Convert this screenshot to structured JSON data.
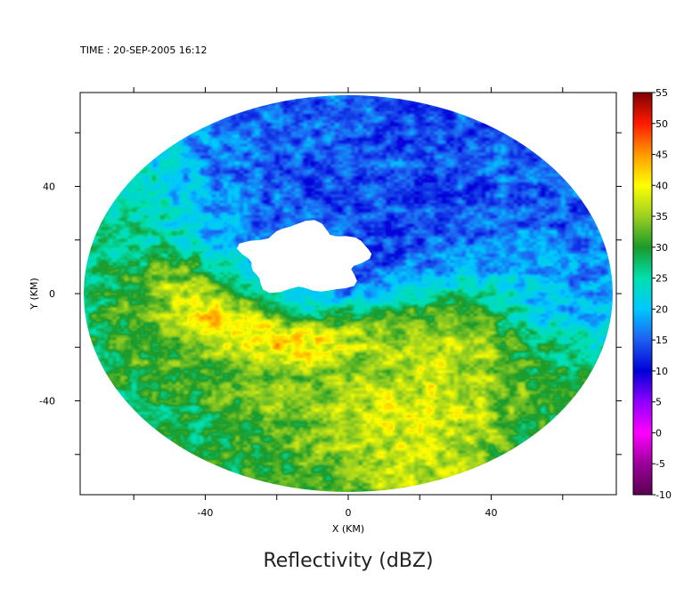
{
  "chart_data": {
    "type": "heatmap",
    "timestamp_label": "TIME : 20-SEP-2005 16:12",
    "title": "Reflectivity (dBZ)",
    "xlabel": "X (KM)",
    "ylabel": "Y (KM)",
    "xlim": [
      -75,
      75
    ],
    "ylim": [
      -75,
      75
    ],
    "x_ticks": [
      -60,
      -40,
      -20,
      0,
      20,
      40,
      60
    ],
    "y_ticks": [
      -60,
      -40,
      -20,
      0,
      20,
      40,
      60
    ],
    "x_tick_labels": [
      "-40",
      "0",
      "40"
    ],
    "x_tick_label_values": [
      -40,
      0,
      40
    ],
    "y_tick_labels": [
      "40",
      "0",
      "-40"
    ],
    "y_tick_label_values": [
      40,
      0,
      -40
    ],
    "radar_radius_km": 74,
    "colorbar": {
      "min": -10,
      "max": 55,
      "tick_labels": [
        "55",
        "50",
        "45",
        "40",
        "35",
        "30",
        "25",
        "20",
        "15",
        "10",
        "5",
        "0",
        "-5",
        "-10"
      ],
      "tick_values": [
        55,
        50,
        45,
        40,
        35,
        30,
        25,
        20,
        15,
        10,
        5,
        0,
        -5,
        -10
      ],
      "stops": [
        {
          "v": -10,
          "c": "#5a0050"
        },
        {
          "v": -5,
          "c": "#9a009a"
        },
        {
          "v": 0,
          "c": "#ff00ff"
        },
        {
          "v": 5,
          "c": "#8f00ff"
        },
        {
          "v": 10,
          "c": "#0000d8"
        },
        {
          "v": 15,
          "c": "#1e5ef0"
        },
        {
          "v": 20,
          "c": "#00c8ff"
        },
        {
          "v": 25,
          "c": "#00e0b0"
        },
        {
          "v": 30,
          "c": "#1a9a2a"
        },
        {
          "v": 35,
          "c": "#9ad020"
        },
        {
          "v": 40,
          "c": "#ffff00"
        },
        {
          "v": 45,
          "c": "#ff9a00"
        },
        {
          "v": 50,
          "c": "#ff1a00"
        },
        {
          "v": 55,
          "c": "#800000"
        }
      ]
    },
    "field_features": {
      "eye_center_km": [
        -12,
        13
      ],
      "eye_radius_km": 16,
      "no_data_value": "white",
      "structures": [
        {
          "kind": "background",
          "value": 31
        },
        {
          "kind": "blob",
          "center_km": [
            -8,
            18
          ],
          "radius_km": 38,
          "value": 11
        },
        {
          "kind": "blob",
          "center_km": [
            20,
            48
          ],
          "radius_km": 36,
          "value": 11
        },
        {
          "kind": "blob",
          "center_km": [
            58,
            25
          ],
          "radius_km": 22,
          "value": 14
        },
        {
          "kind": "blob",
          "center_km": [
            -46,
            -5
          ],
          "radius_km": 14,
          "value": 43
        },
        {
          "kind": "blob",
          "center_km": [
            0,
            -38
          ],
          "radius_km": 18,
          "value": 45
        },
        {
          "kind": "blob",
          "center_km": [
            28,
            -28
          ],
          "radius_km": 14,
          "value": 49
        },
        {
          "kind": "blob",
          "center_km": [
            30,
            -10
          ],
          "radius_km": 10,
          "value": 45
        },
        {
          "kind": "blob",
          "center_km": [
            -30,
            -20
          ],
          "radius_km": 16,
          "value": 38
        },
        {
          "kind": "blob",
          "center_km": [
            -62,
            30
          ],
          "radius_km": 14,
          "value": 30
        },
        {
          "kind": "blob",
          "center_km": [
            -20,
            -65
          ],
          "radius_km": 10,
          "value": 28
        },
        {
          "kind": "blob",
          "center_km": [
            18,
            -55
          ],
          "radius_km": 10,
          "value": 40
        },
        {
          "kind": "blob",
          "center_km": [
            50,
            -30
          ],
          "radius_km": 12,
          "value": 30
        },
        {
          "kind": "blob",
          "center_km": [
            45,
            5
          ],
          "radius_km": 10,
          "value": 25
        }
      ]
    }
  }
}
